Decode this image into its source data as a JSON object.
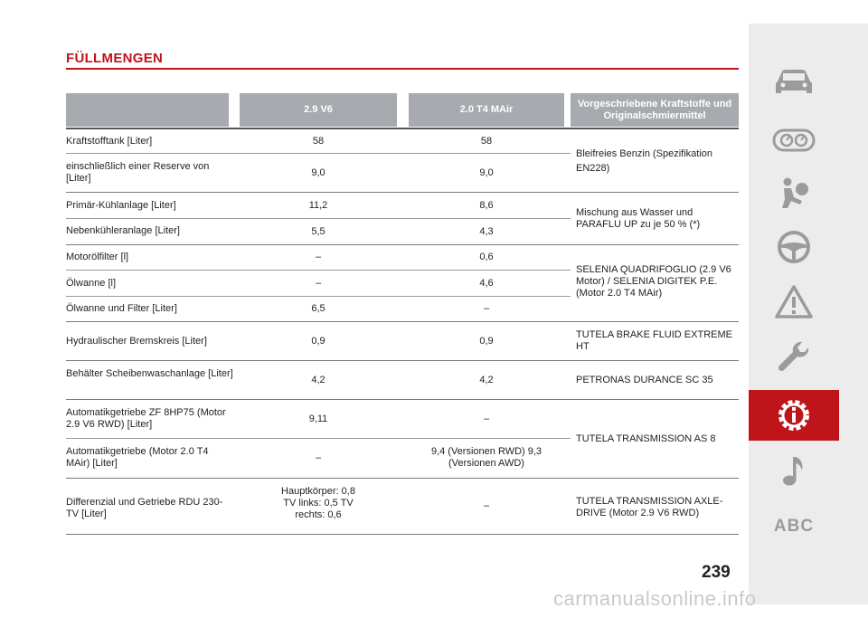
{
  "page": {
    "title": "FÜLLMENGEN",
    "page_number": "239",
    "watermark": "carmanualsonline.info"
  },
  "table": {
    "headers": [
      "",
      "2.9 V6",
      "2.0 T4 MAir",
      "Vorgeschriebene Kraftstoffe und Originalschmiermittel"
    ],
    "rows": [
      {
        "label": "Kraftstofftank [Liter]",
        "v6": "58",
        "t4": "58"
      },
      {
        "label": "einschließlich einer Reserve von [Liter]",
        "v6": "9,0",
        "t4": "9,0"
      },
      {
        "label": "Primär-Kühlanlage [Liter]",
        "v6": "11,2",
        "t4": "8,6"
      },
      {
        "label": "Nebenkühleranlage [Liter]",
        "v6": "5,5",
        "t4": "4,3"
      },
      {
        "label": "Motorölfilter [l]",
        "v6": "–",
        "t4": "0,6"
      },
      {
        "label": "Ölwanne [l]",
        "v6": "–",
        "t4": "4,6"
      },
      {
        "label": "Ölwanne und Filter [Liter]",
        "v6": "6,5",
        "t4": "–"
      },
      {
        "label": "Hydraulischer Bremskreis [Liter]",
        "v6": "0,9",
        "t4": "0,9"
      },
      {
        "label": "Behälter Scheibenwaschanlage [Liter]",
        "v6": "4,2",
        "t4": "4,2"
      },
      {
        "label": "Automatikgetriebe ZF 8HP75 (Motor 2.9 V6 RWD) [Liter]",
        "v6": "9,11",
        "t4": "–"
      },
      {
        "label": "Automatikgetriebe (Motor 2.0 T4 MAir) [Liter]",
        "v6": "–",
        "t4": "9,4 (Versionen RWD) 9,3 (Versionen AWD)"
      },
      {
        "label": "Differenzial und Getriebe RDU 230-TV [Liter]",
        "v6": "Hauptkörper: 0,8 TV links: 0,5 TV rechts: 0,6",
        "t4": "–"
      }
    ],
    "fluids": [
      "Bleifreies Benzin (Spezifikation EN228)",
      "Mischung aus Wasser und PARAFLU UP zu je 50 % (*)",
      "SELENIA QUADRIFOGLIO (2.9 V6 Motor) / SELENIA DIGITEK P.E. (Motor 2.0 T4 MAir)",
      "TUTELA BRAKE FLUID EXTREME HT",
      "PETRONAS DURANCE SC 35",
      "TUTELA TRANSMISSION AS 8",
      "TUTELA TRANSMISSION AXLE-DRIVE (Motor 2.9 V6 RWD)"
    ]
  },
  "sidebar": {
    "items": [
      {
        "icon": "car-icon"
      },
      {
        "icon": "dashboard-icon"
      },
      {
        "icon": "airbag-icon"
      },
      {
        "icon": "steering-wheel-icon"
      },
      {
        "icon": "warning-triangle-icon"
      },
      {
        "icon": "wrench-icon"
      },
      {
        "icon": "technical-data-icon",
        "active": true
      },
      {
        "icon": "music-note-icon"
      },
      {
        "icon": "abc-index-icon",
        "label": "ABC"
      }
    ],
    "colors": {
      "active": "#c0141b",
      "icon": "#9b9b9b",
      "background": "#ececec"
    }
  }
}
